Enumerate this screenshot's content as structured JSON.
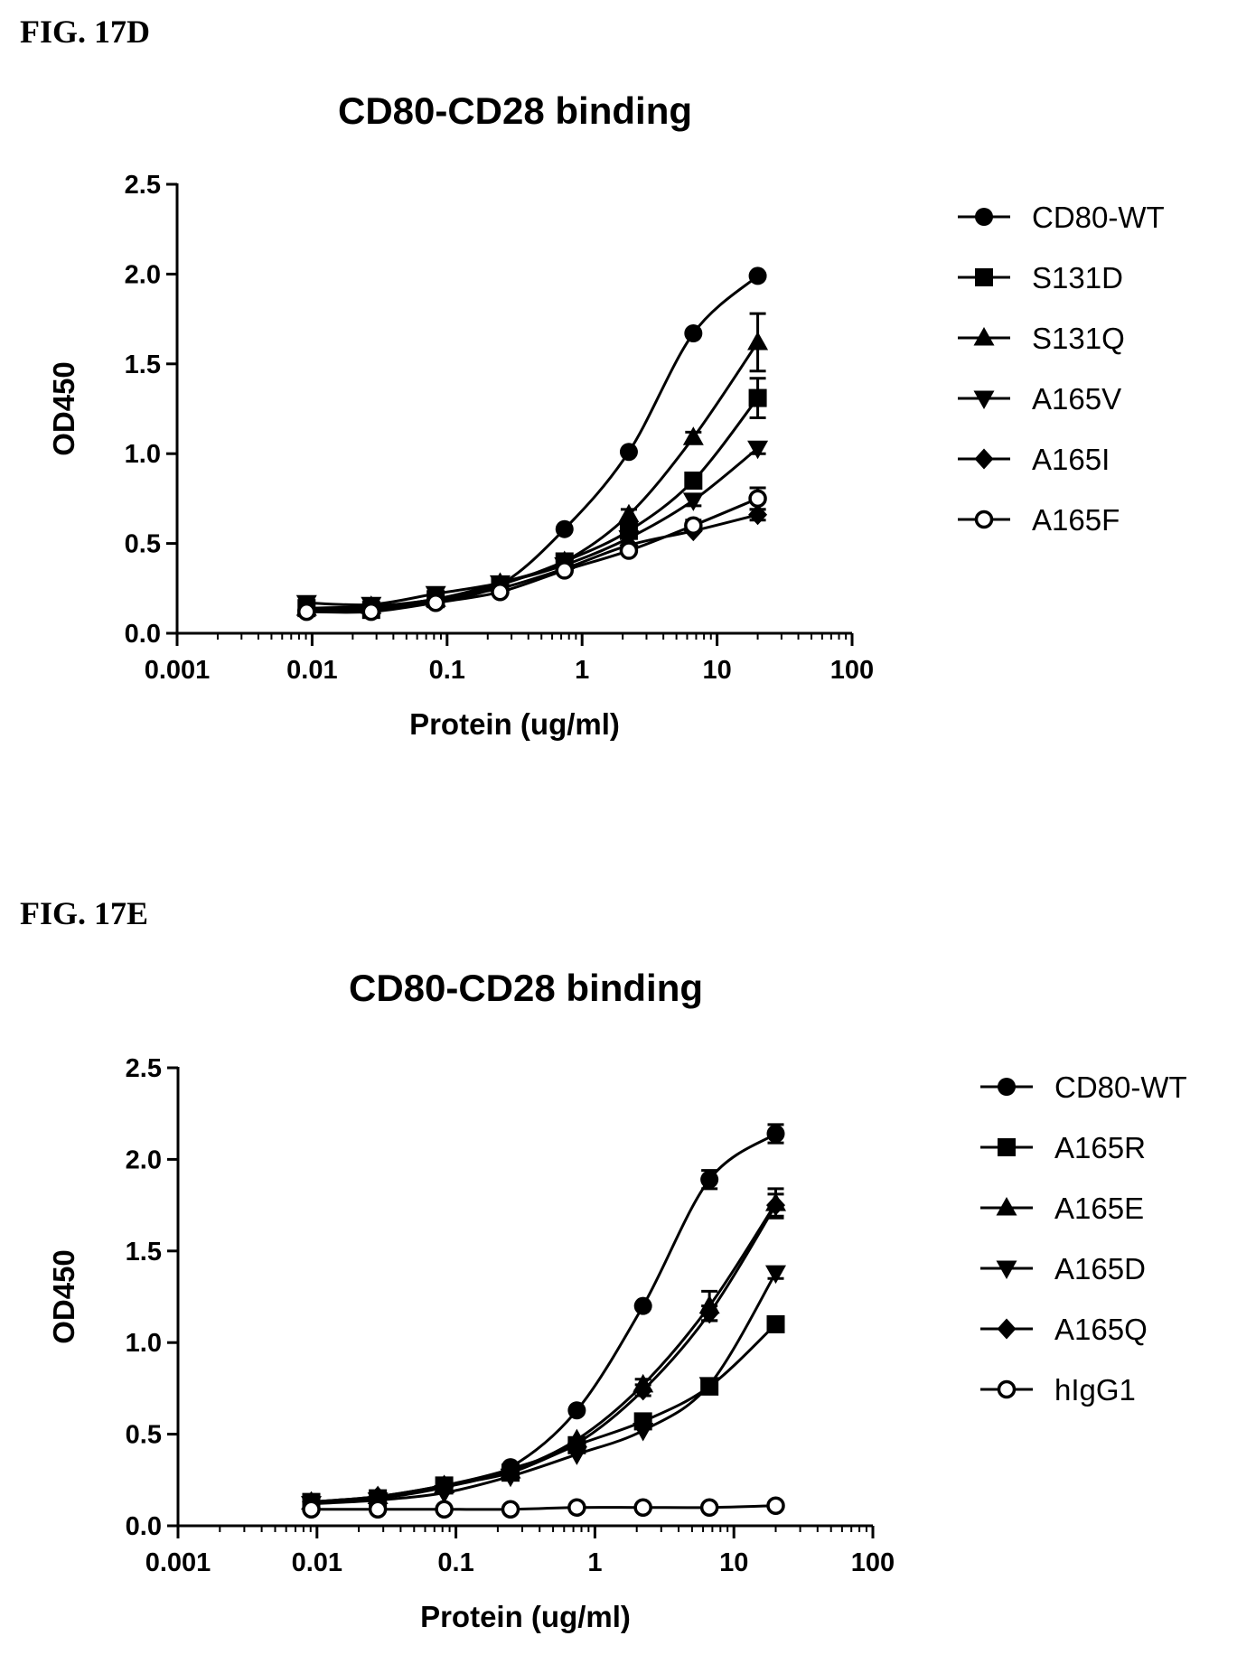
{
  "figures": [
    {
      "label": "FIG. 17D"
    },
    {
      "label": "FIG. 17E"
    }
  ],
  "chart_data": [
    {
      "type": "scatter",
      "title": "CD80-CD28 binding",
      "xlabel": "Protein (ug/ml)",
      "ylabel": "OD450",
      "xscale": "log",
      "xlim": [
        0.001,
        100
      ],
      "ylim": [
        0,
        2.5
      ],
      "xticks": [
        "0.001",
        "0.01",
        "0.1",
        "1",
        "10",
        "100"
      ],
      "yticks": [
        "0.0",
        "0.5",
        "1.0",
        "1.5",
        "2.0",
        "2.5"
      ],
      "legend_position": "right",
      "x": [
        0.0091,
        0.0274,
        0.0823,
        0.247,
        0.741,
        2.22,
        6.67,
        20
      ],
      "series": [
        {
          "name": "CD80-WT",
          "marker": "circle-filled",
          "values": [
            0.13,
            0.14,
            0.18,
            0.27,
            0.58,
            1.01,
            1.67,
            1.99
          ],
          "err": [
            0.02,
            0.02,
            0.02,
            0.02,
            0.02,
            0.02,
            0.02,
            0.02
          ]
        },
        {
          "name": "S131D",
          "marker": "square",
          "values": [
            0.14,
            0.13,
            0.19,
            0.27,
            0.4,
            0.57,
            0.85,
            1.31
          ],
          "err": [
            0.02,
            0.02,
            0.02,
            0.02,
            0.02,
            0.02,
            0.04,
            0.11
          ]
        },
        {
          "name": "S131Q",
          "marker": "triangle-up",
          "values": [
            0.14,
            0.15,
            0.19,
            0.28,
            0.4,
            0.66,
            1.09,
            1.62
          ],
          "err": [
            0.02,
            0.02,
            0.02,
            0.02,
            0.02,
            0.03,
            0.03,
            0.16
          ]
        },
        {
          "name": "A165V",
          "marker": "triangle-down",
          "values": [
            0.17,
            0.16,
            0.22,
            0.28,
            0.38,
            0.53,
            0.74,
            1.03
          ],
          "err": [
            0.02,
            0.02,
            0.02,
            0.02,
            0.02,
            0.02,
            0.03,
            0.03
          ]
        },
        {
          "name": "A165I",
          "marker": "diamond",
          "values": [
            0.13,
            0.14,
            0.19,
            0.25,
            0.36,
            0.49,
            0.57,
            0.66
          ],
          "err": [
            0.02,
            0.02,
            0.02,
            0.02,
            0.02,
            0.02,
            0.02,
            0.03
          ]
        },
        {
          "name": "A165F",
          "marker": "circle-open",
          "values": [
            0.12,
            0.12,
            0.17,
            0.23,
            0.35,
            0.46,
            0.6,
            0.75
          ],
          "err": [
            0.02,
            0.02,
            0.02,
            0.02,
            0.02,
            0.02,
            0.03,
            0.06
          ]
        }
      ]
    },
    {
      "type": "scatter",
      "title": "CD80-CD28 binding",
      "xlabel": "Protein (ug/ml)",
      "ylabel": "OD450",
      "xscale": "log",
      "xlim": [
        0.001,
        100
      ],
      "ylim": [
        0,
        2.5
      ],
      "xticks": [
        "0.001",
        "0.01",
        "0.1",
        "1",
        "10",
        "100"
      ],
      "yticks": [
        "0.0",
        "0.5",
        "1.0",
        "1.5",
        "2.0",
        "2.5"
      ],
      "legend_position": "right",
      "x": [
        0.0091,
        0.0274,
        0.0823,
        0.247,
        0.741,
        2.22,
        6.67,
        20
      ],
      "series": [
        {
          "name": "CD80-WT",
          "marker": "circle-filled",
          "values": [
            0.13,
            0.15,
            0.21,
            0.32,
            0.63,
            1.2,
            1.89,
            2.14
          ],
          "err": [
            0.02,
            0.02,
            0.02,
            0.02,
            0.02,
            0.02,
            0.05,
            0.05
          ]
        },
        {
          "name": "A165R",
          "marker": "square",
          "values": [
            0.13,
            0.15,
            0.22,
            0.29,
            0.44,
            0.57,
            0.76,
            1.1
          ],
          "err": [
            0.02,
            0.02,
            0.02,
            0.02,
            0.02,
            0.02,
            0.03,
            0.03
          ]
        },
        {
          "name": "A165E",
          "marker": "triangle-up",
          "values": [
            0.13,
            0.16,
            0.22,
            0.3,
            0.47,
            0.77,
            1.2,
            1.76
          ],
          "err": [
            0.02,
            0.02,
            0.02,
            0.02,
            0.02,
            0.03,
            0.08,
            0.08
          ]
        },
        {
          "name": "A165D",
          "marker": "triangle-down",
          "values": [
            0.12,
            0.14,
            0.18,
            0.27,
            0.39,
            0.52,
            0.77,
            1.38
          ],
          "err": [
            0.02,
            0.02,
            0.02,
            0.02,
            0.02,
            0.02,
            0.03,
            0.03
          ]
        },
        {
          "name": "A165Q",
          "marker": "diamond",
          "values": [
            0.13,
            0.16,
            0.22,
            0.31,
            0.45,
            0.74,
            1.16,
            1.75
          ],
          "err": [
            0.02,
            0.02,
            0.02,
            0.02,
            0.02,
            0.03,
            0.04,
            0.06
          ]
        },
        {
          "name": "hIgG1",
          "marker": "circle-open",
          "values": [
            0.09,
            0.09,
            0.09,
            0.09,
            0.1,
            0.1,
            0.1,
            0.11
          ],
          "err": [
            0.01,
            0.01,
            0.01,
            0.01,
            0.01,
            0.01,
            0.01,
            0.01
          ]
        }
      ]
    }
  ]
}
